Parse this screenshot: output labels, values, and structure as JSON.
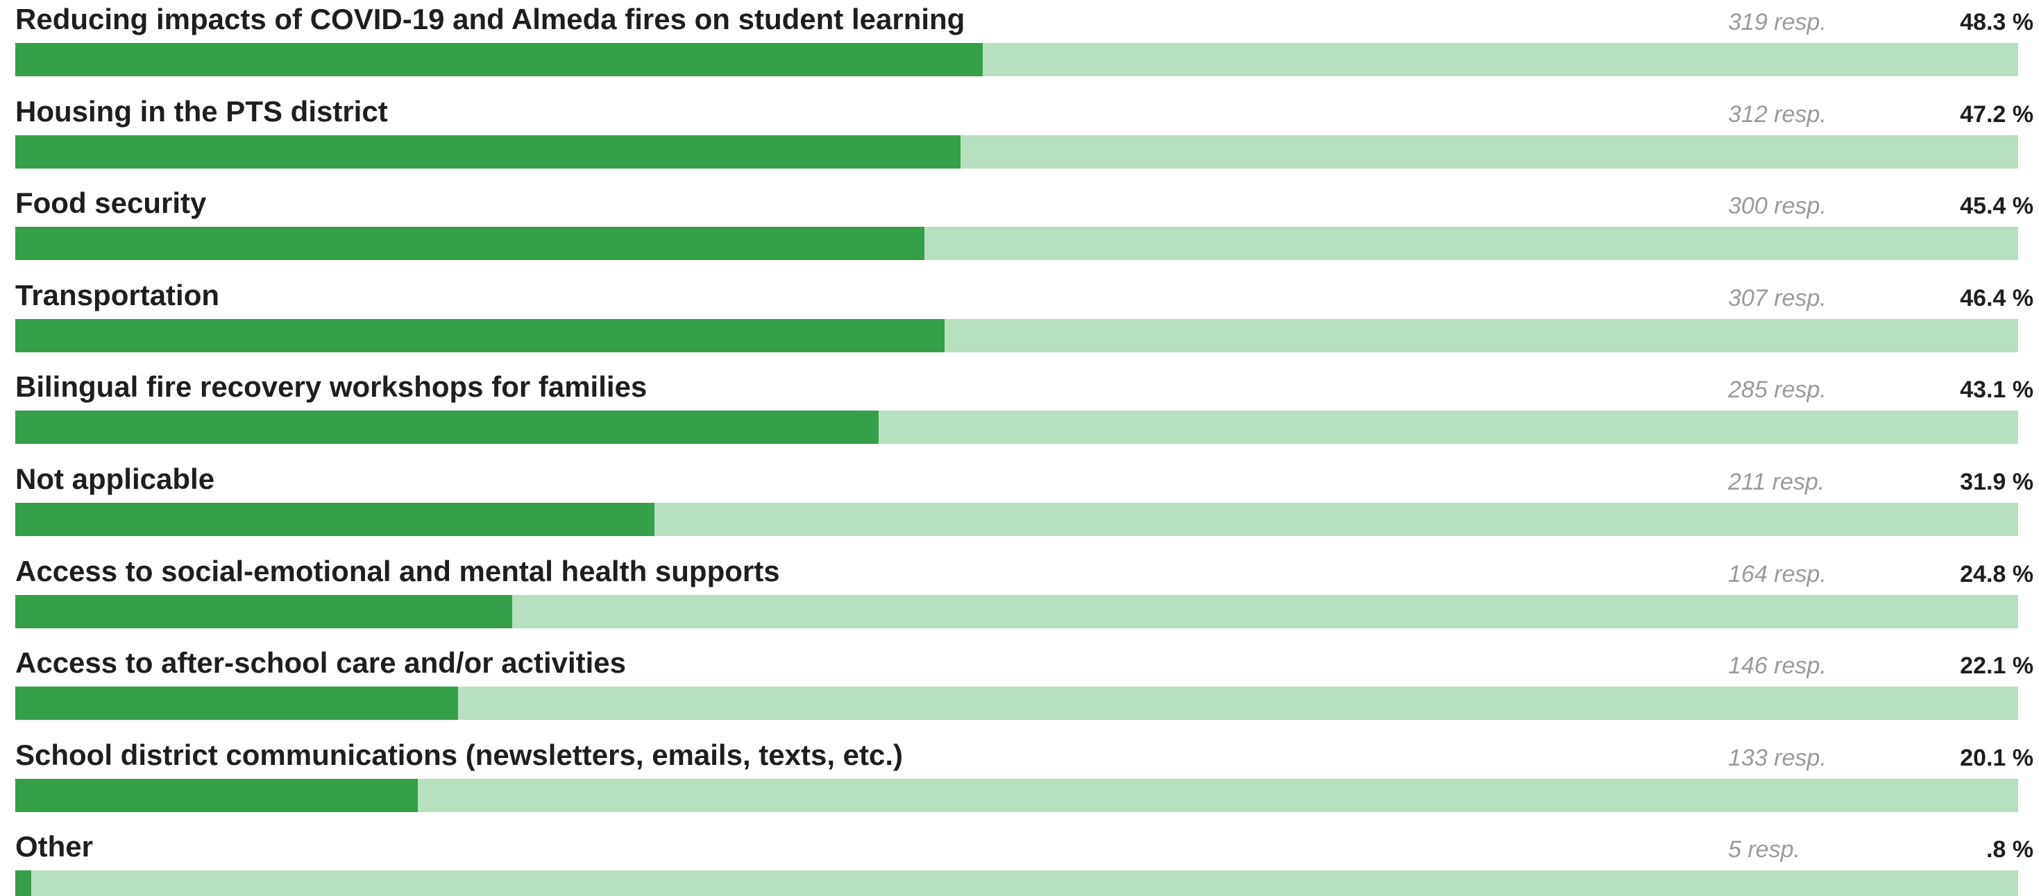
{
  "chart_data": {
    "type": "bar",
    "orientation": "horizontal",
    "count_suffix": "resp.",
    "percent_suffix": "%",
    "colors": {
      "fill": "#34a047",
      "track": "#b7dfc0",
      "label": "#1e1e1e",
      "count": "#9a9a9a"
    },
    "rows": [
      {
        "label": "Reducing impacts of COVID-19 and Almeda fires on student learning",
        "count": 319,
        "count_text": "319 resp.",
        "percent": 48.3,
        "percent_text": "48.3 %"
      },
      {
        "label": "Housing in the PTS district",
        "count": 312,
        "count_text": "312 resp.",
        "percent": 47.2,
        "percent_text": "47.2 %"
      },
      {
        "label": "Food security",
        "count": 300,
        "count_text": "300 resp.",
        "percent": 45.4,
        "percent_text": "45.4 %"
      },
      {
        "label": "Transportation",
        "count": 307,
        "count_text": "307 resp.",
        "percent": 46.4,
        "percent_text": "46.4 %"
      },
      {
        "label": "Bilingual fire recovery workshops for families",
        "count": 285,
        "count_text": "285 resp.",
        "percent": 43.1,
        "percent_text": "43.1 %"
      },
      {
        "label": "Not applicable",
        "count": 211,
        "count_text": "211 resp.",
        "percent": 31.9,
        "percent_text": "31.9 %"
      },
      {
        "label": "Access to social-emotional and mental health supports",
        "count": 164,
        "count_text": "164 resp.",
        "percent": 24.8,
        "percent_text": "24.8 %"
      },
      {
        "label": "Access to after-school care and/or activities",
        "count": 146,
        "count_text": "146 resp.",
        "percent": 22.1,
        "percent_text": "22.1 %"
      },
      {
        "label": "School district communications (newsletters, emails, texts, etc.)",
        "count": 133,
        "count_text": "133 resp.",
        "percent": 20.1,
        "percent_text": "20.1 %"
      },
      {
        "label": "Other",
        "count": 5,
        "count_text": "5 resp.",
        "percent": 0.8,
        "percent_text": ".8 %"
      }
    ]
  }
}
